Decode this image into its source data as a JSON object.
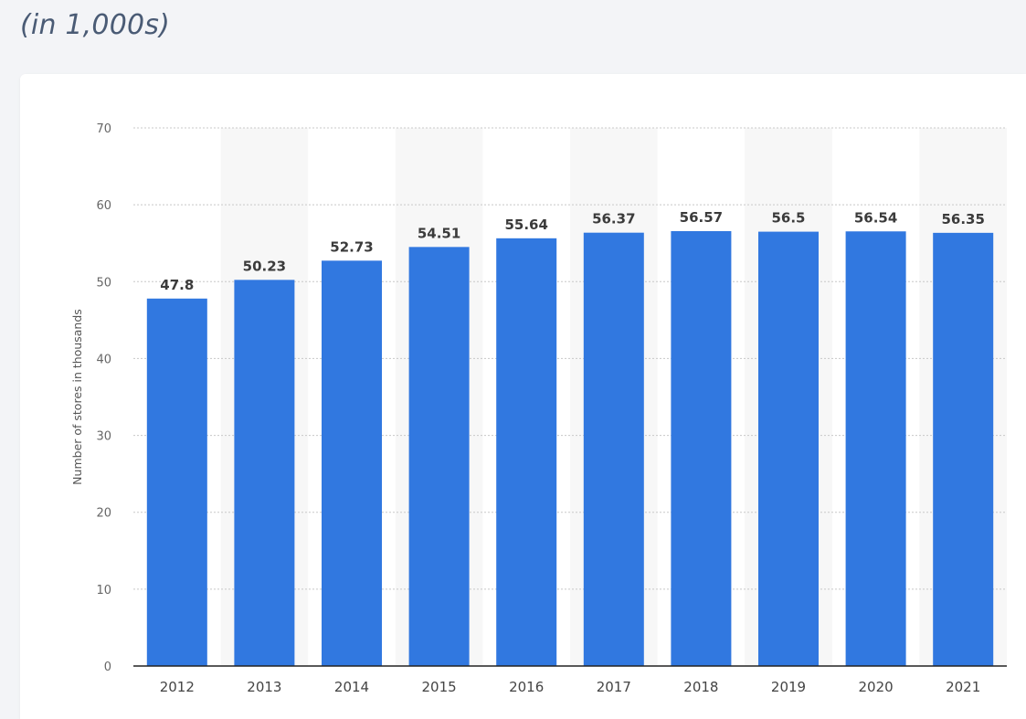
{
  "header": {
    "subtitle": "(in 1,000s)"
  },
  "chart_data": {
    "type": "bar",
    "categories": [
      "2012",
      "2013",
      "2014",
      "2015",
      "2016",
      "2017",
      "2018",
      "2019",
      "2020",
      "2021"
    ],
    "values": [
      47.8,
      50.23,
      52.73,
      54.51,
      55.64,
      56.37,
      56.57,
      56.5,
      56.54,
      56.35
    ],
    "value_labels": [
      "47.8",
      "50.23",
      "52.73",
      "54.51",
      "55.64",
      "56.37",
      "56.57",
      "56.5",
      "56.54",
      "56.35"
    ],
    "ylabel": "Number of stores in thousands",
    "ylim": [
      0,
      70
    ],
    "yticks": [
      0,
      10,
      20,
      30,
      40,
      50,
      60,
      70
    ],
    "grid": true,
    "colors": {
      "bar": "#3178e0",
      "band": "#f7f7f7",
      "grid": "#c8c8c8",
      "axis": "#222222"
    }
  }
}
